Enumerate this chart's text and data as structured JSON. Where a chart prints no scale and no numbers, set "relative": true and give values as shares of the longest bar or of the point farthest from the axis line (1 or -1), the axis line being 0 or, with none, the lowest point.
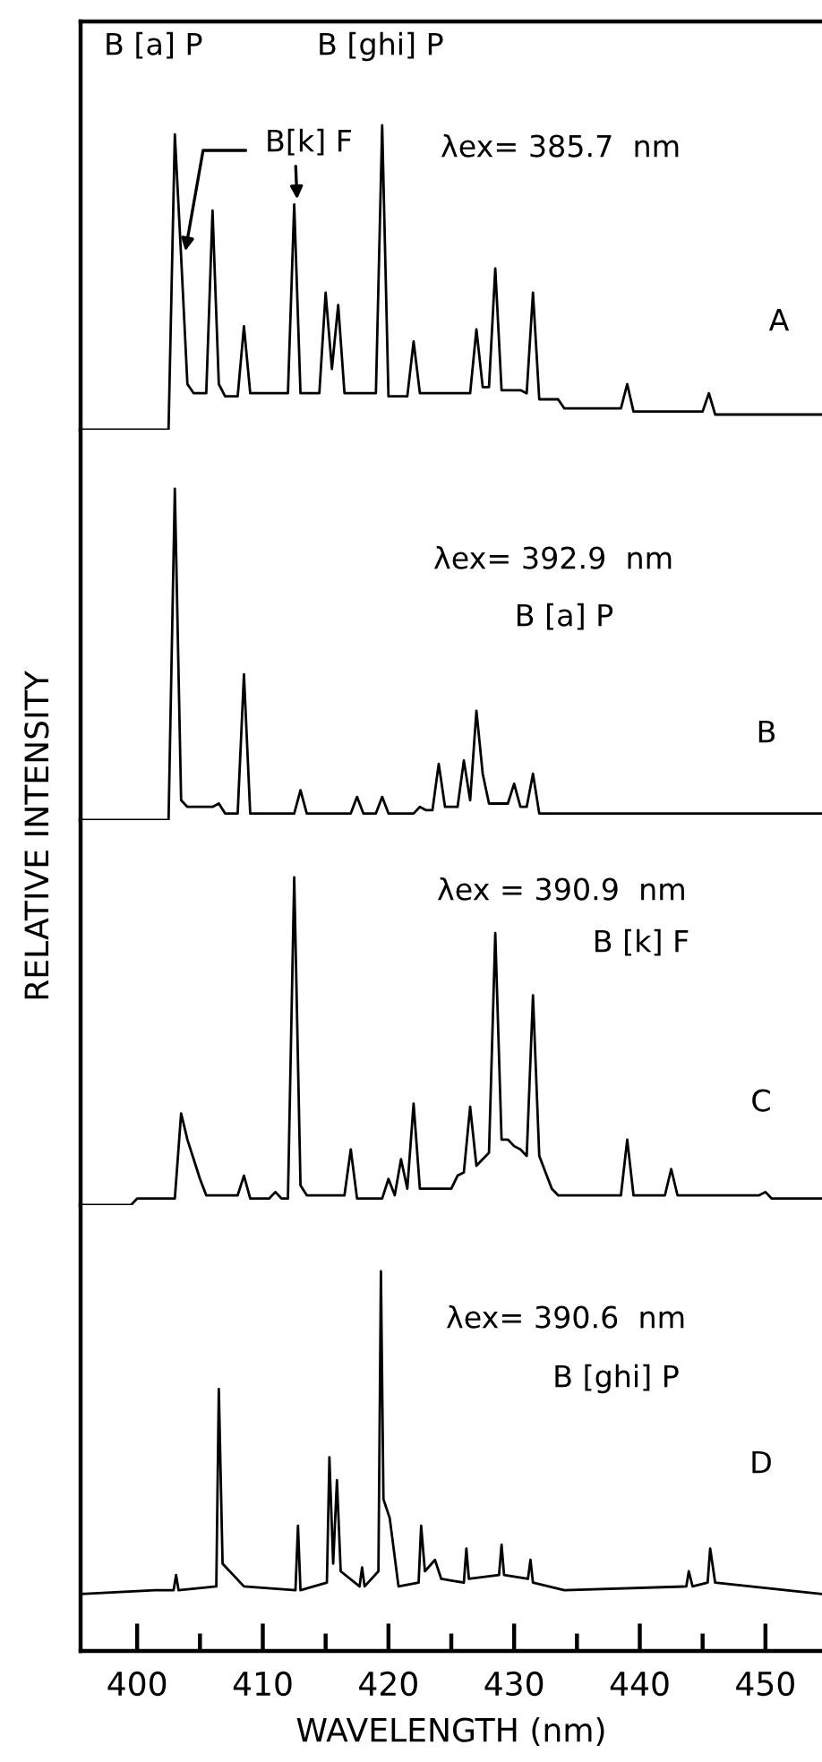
{
  "chart_data": [
    {
      "type": "line",
      "relative": true,
      "tick_labels": false,
      "categories": [
        null,
        null,
        null,
        null,
        null,
        null,
        null,
        null,
        null,
        null,
        null,
        null,
        null,
        null,
        null,
        null,
        null,
        null,
        null,
        null,
        null,
        null,
        null,
        null,
        null,
        null,
        null,
        null,
        null,
        null,
        null,
        null,
        null,
        null,
        null,
        null,
        null,
        null,
        null,
        null,
        null,
        null,
        null,
        null,
        null,
        null,
        null,
        null,
        null,
        null,
        null,
        null,
        null,
        null,
        null,
        null,
        null,
        null,
        null,
        null,
        null,
        null,
        null,
        null,
        null,
        null,
        null,
        null,
        null,
        null,
        null,
        null,
        null,
        null,
        null,
        null,
        null,
        null,
        null,
        null,
        null,
        null,
        null,
        null,
        null,
        null,
        null,
        null,
        null,
        null,
        null,
        null,
        null,
        null,
        null,
        null,
        null,
        null,
        null,
        null,
        null,
        null,
        null,
        null,
        null,
        null,
        null,
        null,
        null,
        null,
        null,
        null,
        null,
        null,
        null,
        null,
        null,
        null,
        null
      ],
      "series": [
        {
          "color": "#000000",
          "values": [
            0,
            0,
            0,
            0,
            0,
            0,
            0,
            0,
            0,
            0,
            0,
            0,
            0,
            0,
            0,
            0.97,
            0.57,
            0.15,
            0.12,
            0.12,
            0.12,
            0.72,
            0.15,
            0.11,
            0.11,
            0.11,
            0.34,
            0.12,
            0.12,
            0.12,
            0.12,
            0.12,
            0.12,
            0.12,
            0.74,
            0.12,
            0.12,
            0.12,
            0.12,
            0.45,
            0.2,
            0.41,
            0.12,
            0.12,
            0.12,
            0.12,
            0.12,
            0.12,
            1.0,
            0.11,
            0.11,
            0.11,
            0.11,
            0.29,
            0.12,
            0.12,
            0.12,
            0.12,
            0.12,
            0.12,
            0.12,
            0.12,
            0.12,
            0.33,
            0.14,
            0.14,
            0.53,
            0.13,
            0.13,
            0.13,
            0.13,
            0.12,
            0.45,
            0.1,
            0.1,
            0.1,
            0.1,
            0.07,
            0.07,
            0.07,
            0.07,
            0.07,
            0.07,
            0.07,
            0.07,
            0.07,
            0.07,
            0.15,
            0.06,
            0.06,
            0.06,
            0.06,
            0.06,
            0.06,
            0.06,
            0.06,
            0.06,
            0.06,
            0.06,
            0.06,
            0.12,
            0.05,
            0.05,
            0.05,
            0.05,
            0.05,
            0.05,
            0.05,
            0.05,
            0.05,
            0.05,
            0.05,
            0.05,
            0.05,
            0.05,
            0.05,
            0.05,
            0.05,
            0.05
          ]
        }
      ],
      "annotations": [
        "B [a] P",
        "B[k] F",
        "B [ghi] P",
        "λex= 385.7  nm",
        "A"
      ]
    },
    {
      "type": "line",
      "relative": true,
      "tick_labels": false,
      "categories": [
        null,
        null,
        null,
        null,
        null,
        null,
        null,
        null,
        null,
        null,
        null,
        null,
        null,
        null,
        null,
        null,
        null,
        null,
        null,
        null,
        null,
        null,
        null,
        null,
        null,
        null,
        null,
        null,
        null,
        null,
        null,
        null,
        null,
        null,
        null,
        null,
        null,
        null,
        null,
        null,
        null,
        null,
        null,
        null,
        null,
        null,
        null,
        null,
        null,
        null,
        null,
        null,
        null,
        null,
        null,
        null,
        null,
        null,
        null,
        null,
        null,
        null,
        null,
        null,
        null,
        null,
        null,
        null,
        null,
        null,
        null,
        null,
        null,
        null,
        null,
        null,
        null,
        null,
        null,
        null,
        null,
        null,
        null,
        null,
        null,
        null,
        null,
        null,
        null,
        null,
        null,
        null,
        null,
        null,
        null,
        null,
        null,
        null,
        null,
        null,
        null,
        null,
        null,
        null,
        null,
        null,
        null,
        null,
        null,
        null,
        null,
        null,
        null,
        null,
        null,
        null,
        null,
        null,
        null
      ],
      "series": [
        {
          "color": "#000000",
          "values": [
            0,
            0,
            0,
            0,
            0,
            0,
            0,
            0,
            0,
            0,
            0,
            0,
            0,
            0,
            0,
            1.0,
            0.06,
            0.04,
            0.04,
            0.04,
            0.04,
            0.04,
            0.05,
            0.02,
            0.02,
            0.02,
            0.44,
            0.02,
            0.02,
            0.02,
            0.02,
            0.02,
            0.02,
            0.02,
            0.02,
            0.09,
            0.02,
            0.02,
            0.02,
            0.02,
            0.02,
            0.02,
            0.02,
            0.02,
            0.07,
            0.02,
            0.02,
            0.02,
            0.07,
            0.02,
            0.02,
            0.02,
            0.02,
            0.02,
            0.04,
            0.03,
            0.03,
            0.17,
            0.04,
            0.04,
            0.04,
            0.18,
            0.06,
            0.33,
            0.14,
            0.05,
            0.05,
            0.05,
            0.05,
            0.11,
            0.04,
            0.04,
            0.14,
            0.02,
            0.02,
            0.02,
            0.02,
            0.02,
            0.02,
            0.02,
            0.02,
            0.02,
            0.02,
            0.02,
            0.02,
            0.02,
            0.02,
            0.02,
            0.02,
            0.02,
            0.02,
            0.02,
            0.02,
            0.02,
            0.02,
            0.02,
            0.02,
            0.02,
            0.02,
            0.02,
            0.02,
            0.02,
            0.02,
            0.02,
            0.02,
            0.02,
            0.02,
            0.02,
            0.02,
            0.02,
            0.02,
            0.02,
            0.02,
            0.02,
            0.02,
            0.02,
            0.02,
            0.02,
            0.02
          ]
        }
      ],
      "annotations": [
        "λex= 392.9  nm",
        "B [a] P",
        "B"
      ]
    },
    {
      "type": "line",
      "relative": true,
      "tick_labels": false,
      "ylabel": "RELATIVE INTENSITY",
      "categories": [
        null,
        null,
        null,
        null,
        null,
        null,
        null,
        null,
        null,
        null,
        null,
        null,
        null,
        null,
        null,
        null,
        null,
        null,
        null,
        null,
        null,
        null,
        null,
        null,
        null,
        null,
        null,
        null,
        null,
        null,
        null,
        null,
        null,
        null,
        null,
        null,
        null,
        null,
        null,
        null,
        null,
        null,
        null,
        null,
        null,
        null,
        null,
        null,
        null,
        null,
        null,
        null,
        null,
        null,
        null,
        null,
        null,
        null,
        null,
        null,
        null,
        null,
        null,
        null,
        null,
        null,
        null,
        null,
        null,
        null,
        null,
        null,
        null,
        null,
        null,
        null,
        null,
        null,
        null,
        null,
        null,
        null,
        null,
        null,
        null,
        null,
        null,
        null,
        null,
        null,
        null,
        null,
        null,
        null,
        null,
        null,
        null,
        null,
        null,
        null,
        null,
        null,
        null,
        null,
        null,
        null,
        null,
        null,
        null,
        null,
        null,
        null,
        null,
        null,
        null,
        null,
        null,
        null,
        null
      ],
      "series": [
        {
          "color": "#000000",
          "values": [
            0,
            0,
            0,
            0,
            0,
            0,
            0,
            0,
            0,
            0.02,
            0.02,
            0.02,
            0.02,
            0.02,
            0.02,
            0.02,
            0.28,
            0.2,
            0.14,
            0.08,
            0.03,
            0.03,
            0.03,
            0.03,
            0.03,
            0.03,
            0.09,
            0.02,
            0.02,
            0.02,
            0.02,
            0.04,
            0.02,
            0.02,
            1.0,
            0.06,
            0.03,
            0.03,
            0.03,
            0.03,
            0.03,
            0.03,
            0.03,
            0.17,
            0.02,
            0.02,
            0.02,
            0.02,
            0.02,
            0.08,
            0.03,
            0.14,
            0.05,
            0.31,
            0.05,
            0.05,
            0.05,
            0.05,
            0.05,
            0.05,
            0.09,
            0.1,
            0.3,
            0.12,
            0.14,
            0.16,
            0.83,
            0.2,
            0.2,
            0.18,
            0.17,
            0.15,
            0.64,
            0.15,
            0.1,
            0.05,
            0.03,
            0.03,
            0.03,
            0.03,
            0.03,
            0.03,
            0.03,
            0.03,
            0.03,
            0.03,
            0.03,
            0.2,
            0.03,
            0.03,
            0.03,
            0.03,
            0.03,
            0.03,
            0.11,
            0.03,
            0.03,
            0.03,
            0.03,
            0.03,
            0.03,
            0.03,
            0.03,
            0.03,
            0.03,
            0.03,
            0.03,
            0.03,
            0.03,
            0.04,
            0.02,
            0.02,
            0.02,
            0.02,
            0.02,
            0.02,
            0.02,
            0.02,
            0.02
          ]
        }
      ],
      "annotations": [
        "λex = 390.9  nm",
        "B [k] F",
        "C"
      ]
    },
    {
      "type": "line",
      "relative": true,
      "xlim": [
        395.5,
        454.5
      ],
      "tick_labels": "x",
      "xlabel": "WAVELENGTH (nm)",
      "xticks": [
        400,
        {
          "value": 405,
          "label": null
        },
        410,
        {
          "value": 415,
          "label": null
        },
        420,
        {
          "value": 425,
          "label": null
        },
        430,
        {
          "value": 435,
          "label": null
        },
        440,
        {
          "value": 445,
          "label": null
        },
        450
      ],
      "x": [
        395.5,
        401.4,
        402.9,
        403.1,
        403.3,
        406.3,
        406.5,
        406.8,
        408.5,
        412.6,
        412.8,
        413.0,
        415.1,
        415.3,
        415.6,
        415.9,
        416.2,
        417.7,
        417.9,
        418.1,
        419.2,
        419.4,
        419.6,
        420.1,
        420.8,
        422.4,
        422.6,
        422.9,
        423.7,
        424.2,
        426.0,
        426.2,
        426.4,
        428.8,
        429.0,
        429.2,
        431.1,
        431.3,
        431.5,
        434,
        443.7,
        443.9,
        444.2,
        445.4,
        445.6,
        446.0,
        454.5
      ],
      "series": [
        {
          "color": "#000000",
          "values": [
            0.15,
            0.16,
            0.16,
            0.2,
            0.16,
            0.17,
            0.69,
            0.23,
            0.17,
            0.16,
            0.33,
            0.16,
            0.18,
            0.51,
            0.23,
            0.45,
            0.21,
            0.17,
            0.22,
            0.17,
            0.21,
            1.0,
            0.4,
            0.35,
            0.17,
            0.18,
            0.33,
            0.21,
            0.24,
            0.19,
            0.18,
            0.27,
            0.19,
            0.2,
            0.28,
            0.2,
            0.19,
            0.24,
            0.18,
            0.16,
            0.17,
            0.21,
            0.17,
            0.18,
            0.27,
            0.18,
            0.15
          ]
        }
      ],
      "annotations": [
        "λex= 390.6  nm",
        "B [ghi] P",
        "D"
      ]
    }
  ]
}
